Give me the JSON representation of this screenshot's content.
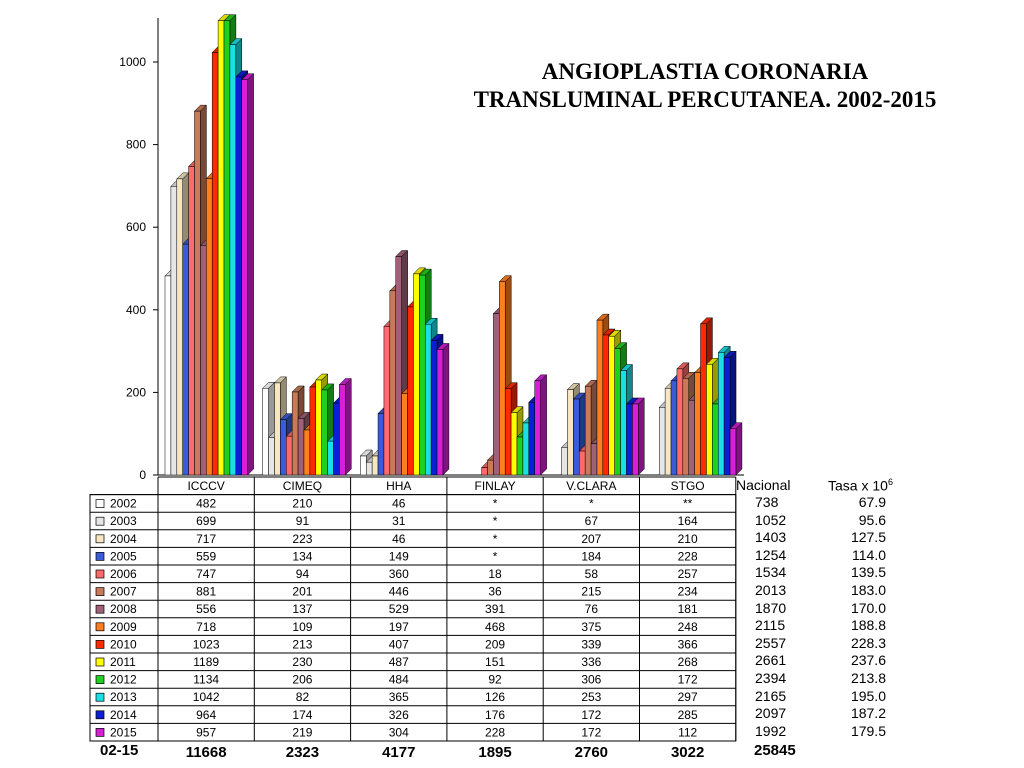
{
  "title": {
    "line1": "ANGIOPLASTIA CORONARIA",
    "line2": "TRANSLUMINAL PERCUTANEA. 2002-2015"
  },
  "chart_data": {
    "type": "bar",
    "categories": [
      "ICCCV",
      "CIMEQ",
      "HHA",
      "FINLAY",
      "V.CLARA",
      "STGO"
    ],
    "ylim": [
      0,
      1100
    ],
    "yticks": [
      "0",
      "200",
      "400",
      "600",
      "800",
      "1000"
    ],
    "series": [
      {
        "name": "2002",
        "color": "#ffffff",
        "values": [
          482,
          210,
          46,
          null,
          null,
          null
        ],
        "labels": [
          "482",
          "210",
          "46",
          "*",
          "*",
          "**"
        ]
      },
      {
        "name": "2003",
        "color": "#e6e6e6",
        "values": [
          699,
          91,
          31,
          null,
          67,
          164
        ],
        "labels": [
          "699",
          "91",
          "31",
          "*",
          "67",
          "164"
        ]
      },
      {
        "name": "2004",
        "color": "#f6e7c1",
        "values": [
          717,
          223,
          46,
          null,
          207,
          210
        ],
        "labels": [
          "717",
          "223",
          "46",
          "*",
          "207",
          "210"
        ]
      },
      {
        "name": "2005",
        "color": "#3b5bdb",
        "values": [
          559,
          134,
          149,
          null,
          184,
          228
        ],
        "labels": [
          "559",
          "134",
          "149",
          "*",
          "184",
          "228"
        ]
      },
      {
        "name": "2006",
        "color": "#ff6a6a",
        "values": [
          747,
          94,
          360,
          18,
          58,
          257
        ],
        "labels": [
          "747",
          "94",
          "360",
          "18",
          "58",
          "257"
        ]
      },
      {
        "name": "2007",
        "color": "#c87a5a",
        "values": [
          881,
          201,
          446,
          36,
          215,
          234
        ],
        "labels": [
          "881",
          "201",
          "446",
          "36",
          "215",
          "234"
        ]
      },
      {
        "name": "2008",
        "color": "#a0607a",
        "values": [
          556,
          137,
          529,
          391,
          76,
          181
        ],
        "labels": [
          "556",
          "137",
          "529",
          "391",
          "76",
          "181"
        ]
      },
      {
        "name": "2009",
        "color": "#ff7f1f",
        "values": [
          718,
          109,
          197,
          468,
          375,
          248
        ],
        "labels": [
          "718",
          "109",
          "197",
          "468",
          "375",
          "248"
        ]
      },
      {
        "name": "2010",
        "color": "#ff2a00",
        "values": [
          1023,
          213,
          407,
          209,
          339,
          366
        ],
        "labels": [
          "1023",
          "213",
          "407",
          "209",
          "339",
          "366"
        ]
      },
      {
        "name": "2011",
        "color": "#ffff00",
        "values": [
          1189,
          230,
          487,
          151,
          336,
          268
        ],
        "labels": [
          "1189",
          "230",
          "487",
          "151",
          "336",
          "268"
        ]
      },
      {
        "name": "2012",
        "color": "#1fd11f",
        "values": [
          1134,
          206,
          484,
          92,
          306,
          172
        ],
        "labels": [
          "1134",
          "206",
          "484",
          "92",
          "306",
          "172"
        ]
      },
      {
        "name": "2013",
        "color": "#19e0e6",
        "values": [
          1042,
          82,
          365,
          126,
          253,
          297
        ],
        "labels": [
          "1042",
          "82",
          "365",
          "126",
          "253",
          "297"
        ]
      },
      {
        "name": "2014",
        "color": "#0a1fd6",
        "values": [
          964,
          174,
          326,
          176,
          172,
          285
        ],
        "labels": [
          "964",
          "174",
          "326",
          "176",
          "172",
          "285"
        ]
      },
      {
        "name": "2015",
        "color": "#d61fd6",
        "values": [
          957,
          219,
          304,
          228,
          172,
          112
        ],
        "labels": [
          "957",
          "219",
          "304",
          "228",
          "172",
          "112"
        ]
      }
    ],
    "totals": {
      "label": "02-15",
      "values": [
        "11668",
        "2323",
        "4177",
        "1895",
        "2760",
        "3022"
      ],
      "nacional": "25845"
    },
    "nacional": {
      "header": "Nacional",
      "rate_header": "Tasa x 10",
      "rate_header_sup": "6",
      "values": [
        "738",
        "1052",
        "1403",
        "1254",
        "1534",
        "2013",
        "1870",
        "2115",
        "2557",
        "2661",
        "2394",
        "2165",
        "2097",
        "1992"
      ],
      "rates": [
        "67.9",
        "95.6",
        "127.5",
        "114.0",
        "139.5",
        "183.0",
        "170.0",
        "188.8",
        "228.3",
        "237.6",
        "213.8",
        "195.0",
        "187.2",
        "179.5"
      ]
    }
  }
}
